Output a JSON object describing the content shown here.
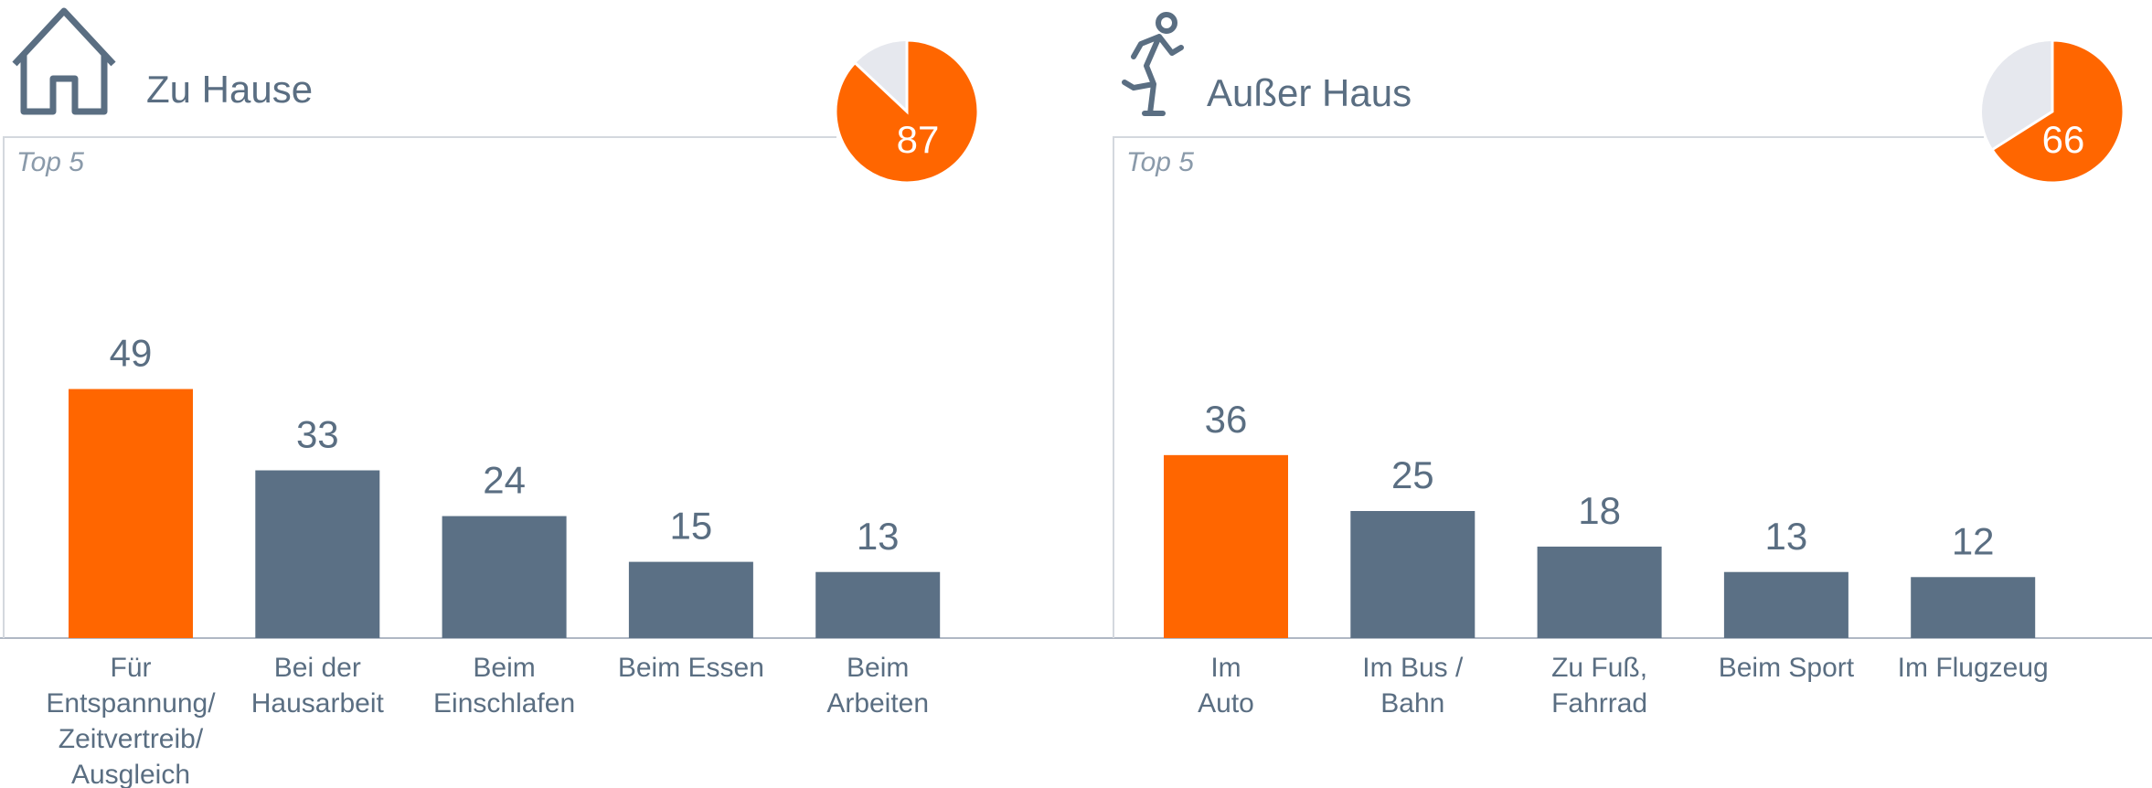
{
  "chart_data": [
    {
      "type": "bar",
      "title": "Zu Hause",
      "subtitle": "Top 5",
      "pie_value": 87,
      "pie_color": "#ff6600",
      "pie_rest_color": "#e6e8ee",
      "categories": [
        "Für\nEntspannung/\nZeitvertreib/\nAusgleich",
        "Bei der\nHausarbeit",
        "Beim\nEinschlafen",
        "Beim Essen",
        "Beim\nArbeiten"
      ],
      "values": [
        49,
        33,
        24,
        15,
        13
      ],
      "colors": [
        "#ff6600",
        "#5b7085",
        "#5b7085",
        "#5b7085",
        "#5b7085"
      ]
    },
    {
      "type": "bar",
      "title": "Außer Haus",
      "subtitle": "Top 5",
      "pie_value": 66,
      "pie_color": "#ff6600",
      "pie_rest_color": "#e6e8ee",
      "categories": [
        "Im\nAuto",
        "Im Bus /\nBahn",
        "Zu Fuß,\nFahrrad",
        "Beim Sport",
        "Im Flugzeug"
      ],
      "values": [
        36,
        25,
        18,
        13,
        12
      ],
      "colors": [
        "#ff6600",
        "#5b7085",
        "#5b7085",
        "#5b7085",
        "#5b7085"
      ]
    }
  ]
}
